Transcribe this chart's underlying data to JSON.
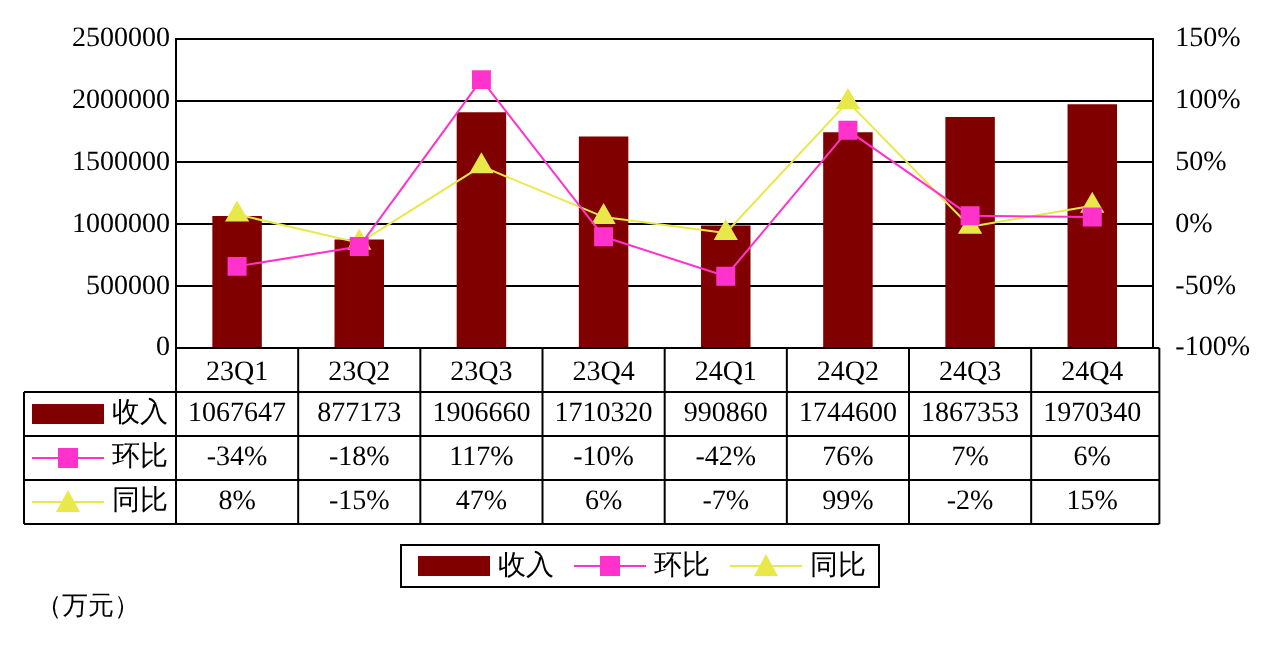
{
  "chart_data": {
    "type": "bar",
    "categories": [
      "23Q1",
      "23Q2",
      "23Q3",
      "23Q4",
      "24Q1",
      "24Q2",
      "24Q3",
      "24Q4"
    ],
    "series": [
      {
        "name": "收入",
        "color": "#800000",
        "values": [
          1067647,
          877173,
          1906660,
          1710320,
          990860,
          1744600,
          1867353,
          1970340
        ],
        "value_labels": [
          "1067647",
          "877173",
          "1906660",
          "1710320",
          "990860",
          "1744600",
          "1867353",
          "1970340"
        ]
      },
      {
        "name": "环比",
        "type": "line",
        "axis": "y2",
        "marker": "square",
        "color": "#ff33cc",
        "values": [
          -34,
          -18,
          117,
          -10,
          -42,
          76,
          7,
          6
        ],
        "value_labels": [
          "-34%",
          "-18%",
          "117%",
          "-10%",
          "-42%",
          "76%",
          "7%",
          "6%"
        ]
      },
      {
        "name": "同比",
        "type": "line",
        "axis": "y2",
        "marker": "triangle",
        "color": "#e8e84a",
        "values": [
          8,
          -15,
          47,
          6,
          -7,
          99,
          -2,
          15
        ],
        "value_labels": [
          "8%",
          "-15%",
          "47%",
          "6%",
          "-7%",
          "99%",
          "-2%",
          "15%"
        ]
      }
    ],
    "ylim": [
      0,
      2500000
    ],
    "yticks": [
      0,
      500000,
      1000000,
      1500000,
      2000000,
      2500000
    ],
    "y2lim": [
      -100,
      150
    ],
    "y2ticks": [
      {
        "value": -100,
        "label": "-100%"
      },
      {
        "value": -50,
        "label": "-50%"
      },
      {
        "value": 0,
        "label": "0%"
      },
      {
        "value": 50,
        "label": "50%"
      },
      {
        "value": 100,
        "label": "100%"
      },
      {
        "value": 150,
        "label": "150%"
      }
    ],
    "grid": "y",
    "legend": "bottom",
    "annotations": [
      "（万元）"
    ]
  }
}
